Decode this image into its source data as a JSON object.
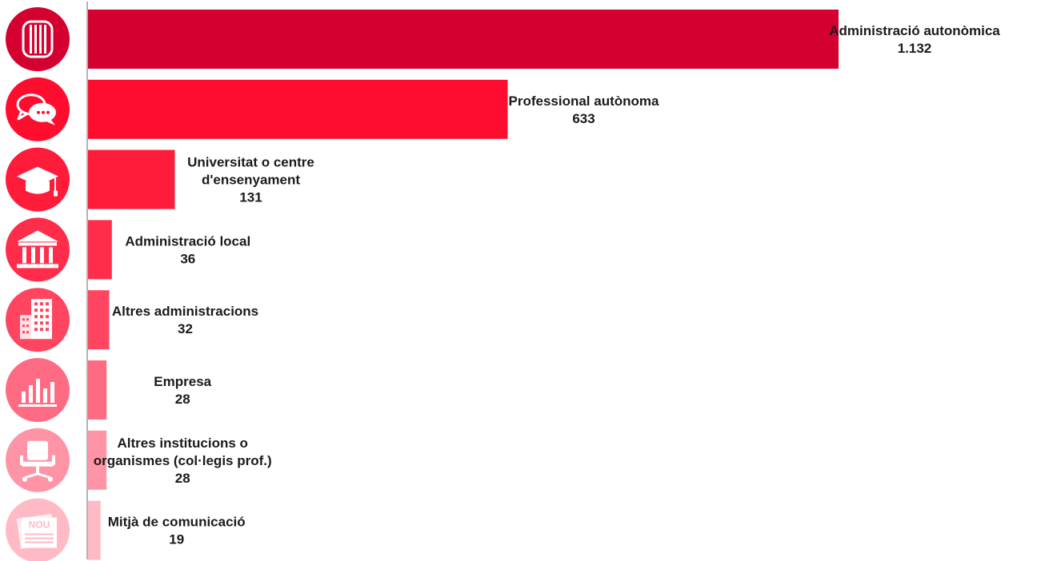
{
  "chart_data": {
    "type": "bar",
    "orientation": "horizontal",
    "categories": [
      "Administració autonòmica",
      "Professional autònoma",
      "Universitat o centre d'ensenyament",
      "Administració local",
      "Altres administracions",
      "Empresa",
      "Altres institucions o organismes (col·legis prof.)",
      "Mitjà de comunicació"
    ],
    "label_lines": [
      [
        "Administració autonòmica"
      ],
      [
        "Professional autònoma"
      ],
      [
        "Universitat o centre",
        "d'ensenyament"
      ],
      [
        "Administració local"
      ],
      [
        "Altres administracions"
      ],
      [
        "Empresa"
      ],
      [
        "Altres institucions o",
        "organismes (col·legis prof.)"
      ],
      [
        "Mitjà de comunicació"
      ]
    ],
    "values": [
      1132,
      633,
      131,
      36,
      32,
      28,
      28,
      19
    ],
    "value_labels": [
      "1.132",
      "633",
      "131",
      "36",
      "32",
      "28",
      "28",
      "19"
    ],
    "icons": [
      "government-emblem-icon",
      "chat-bubbles-icon",
      "graduation-cap-icon",
      "institution-building-icon",
      "office-building-icon",
      "bar-chart-icon",
      "office-chair-icon",
      "newspaper-icon"
    ],
    "icon_texts": [
      "",
      "",
      "",
      "",
      "",
      "",
      "",
      "NOU"
    ],
    "colors": [
      "#d4002f",
      "#ff0d2e",
      "#ff1b3a",
      "#ff2d4a",
      "#ff4560",
      "#ff6b82",
      "#ff94a6",
      "#ffbac6"
    ],
    "axis_color": "#b3b3b3",
    "title": "",
    "xlabel": "",
    "ylabel": ""
  }
}
